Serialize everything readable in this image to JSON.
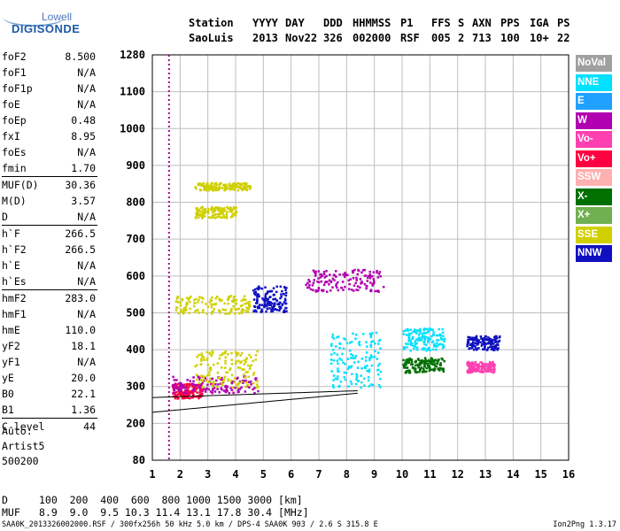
{
  "logo": {
    "line1": "Lowell",
    "line2": "DIGISONDE"
  },
  "header": {
    "labels": [
      "Station",
      "YYYY",
      "DAY",
      "DDD",
      "HHMMSS",
      "P1",
      "FFS",
      "S",
      "AXN",
      "PPS",
      "IGA",
      "PS"
    ],
    "values": [
      "SaoLuis",
      "2013",
      "Nov22",
      "326",
      "002000",
      "RSF",
      "005",
      "2",
      "713",
      "100",
      "10+",
      "22"
    ]
  },
  "params": {
    "group1": [
      {
        "k": "foF2",
        "v": "8.500"
      },
      {
        "k": "foF1",
        "v": "N/A"
      },
      {
        "k": "foF1p",
        "v": "N/A"
      },
      {
        "k": "foE",
        "v": "N/A"
      },
      {
        "k": "foEp",
        "v": "0.48"
      },
      {
        "k": "fxI",
        "v": "8.95"
      },
      {
        "k": "foEs",
        "v": "N/A"
      },
      {
        "k": "fmin",
        "v": "1.70"
      }
    ],
    "group2": [
      {
        "k": "MUF(D)",
        "v": "30.36"
      },
      {
        "k": "M(D)",
        "v": "3.57"
      },
      {
        "k": "D",
        "v": "N/A"
      }
    ],
    "group3": [
      {
        "k": "h`F",
        "v": "266.5"
      },
      {
        "k": "h`F2",
        "v": "266.5"
      },
      {
        "k": "h`E",
        "v": "N/A"
      },
      {
        "k": "h`Es",
        "v": "N/A"
      }
    ],
    "group4": [
      {
        "k": "hmF2",
        "v": "283.0"
      },
      {
        "k": "hmF1",
        "v": "N/A"
      },
      {
        "k": "hmE",
        "v": "110.0"
      },
      {
        "k": "yF2",
        "v": "18.1"
      },
      {
        "k": "yF1",
        "v": "N/A"
      },
      {
        "k": "yE",
        "v": "20.0"
      },
      {
        "k": "B0",
        "v": "22.1"
      },
      {
        "k": "B1",
        "v": "1.36"
      }
    ],
    "group5": [
      {
        "k": "C-level",
        "v": "44"
      }
    ]
  },
  "auto": {
    "line1": "Auto:",
    "line2": "Artist5",
    "line3": "500200"
  },
  "legend": [
    {
      "label": "NoVal",
      "color": "#a0a0a0"
    },
    {
      "label": "NNE",
      "color": "#00e0ff"
    },
    {
      "label": "E",
      "color": "#20a0ff"
    },
    {
      "label": "W",
      "color": "#b000b0"
    },
    {
      "label": "Vo-",
      "color": "#ff40b0"
    },
    {
      "label": "Vo+",
      "color": "#ff0040"
    },
    {
      "label": "SSW",
      "color": "#ffb0b0"
    },
    {
      "label": "X-",
      "color": "#007000"
    },
    {
      "label": "X+",
      "color": "#70b050"
    },
    {
      "label": "SSE",
      "color": "#d0d000"
    },
    {
      "label": "NNW",
      "color": "#1010c0"
    }
  ],
  "chart_data": {
    "type": "scatter",
    "xlim": [
      1,
      16
    ],
    "x_ticks": [
      1,
      2,
      3,
      4,
      5,
      6,
      7,
      8,
      9,
      10,
      11,
      12,
      13,
      14,
      15,
      16
    ],
    "y_ticks_rows": [
      80,
      200,
      300,
      400,
      500,
      600,
      700,
      800,
      900,
      1000,
      1100,
      1280
    ],
    "y_tick_labels": [
      "80",
      "200",
      "300",
      "400",
      "500",
      "600",
      "700",
      "800",
      "900",
      "1000",
      "1100",
      "1280"
    ],
    "fmin_line_x": 1.6,
    "trace_clusters": [
      {
        "x": [
          1.7,
          2.8
        ],
        "y": [
          270,
          310
        ],
        "color": "#ff0040"
      },
      {
        "x": [
          1.7,
          4.8
        ],
        "y": [
          285,
          330
        ],
        "color": "#b000b0"
      },
      {
        "x": [
          2.5,
          4.8
        ],
        "y": [
          300,
          400
        ],
        "color": "#d0d000"
      },
      {
        "x": [
          1.8,
          4.5
        ],
        "y": [
          500,
          550
        ],
        "color": "#d0d000"
      },
      {
        "x": [
          4.6,
          5.8
        ],
        "y": [
          505,
          575
        ],
        "color": "#1010c0"
      },
      {
        "x": [
          6.5,
          9.3
        ],
        "y": [
          560,
          620
        ],
        "color": "#b000b0"
      },
      {
        "x": [
          7.4,
          9.2
        ],
        "y": [
          300,
          450
        ],
        "color": "#00e0ff"
      },
      {
        "x": [
          10.0,
          11.5
        ],
        "y": [
          400,
          460
        ],
        "color": "#00e0ff"
      },
      {
        "x": [
          10.0,
          11.5
        ],
        "y": [
          340,
          380
        ],
        "color": "#007000"
      },
      {
        "x": [
          12.3,
          13.5
        ],
        "y": [
          400,
          440
        ],
        "color": "#1010c0"
      },
      {
        "x": [
          12.3,
          13.3
        ],
        "y": [
          340,
          370
        ],
        "color": "#ff40b0"
      },
      {
        "x": [
          2.5,
          4.0
        ],
        "y": [
          760,
          790
        ],
        "color": "#d0d000"
      },
      {
        "x": [
          2.5,
          4.5
        ],
        "y": [
          835,
          855
        ],
        "color": "#d0d000"
      }
    ]
  },
  "bottom": {
    "row1_label": "D",
    "row1_values": "100  200  400  600  800 1000 1500 3000 [km]",
    "row2_label": "MUF",
    "row2_values": "8.9  9.0  9.5 10.3 11.4 13.1 17.8 30.4 [MHz]"
  },
  "footer": {
    "left": "SAA0K_2013326002000.RSF / 300fx256h 50 kHz 5.0 km / DPS-4 SAA0K 903 / 2.6 S 315.8 E",
    "right": "Ion2Png 1.3.17"
  }
}
